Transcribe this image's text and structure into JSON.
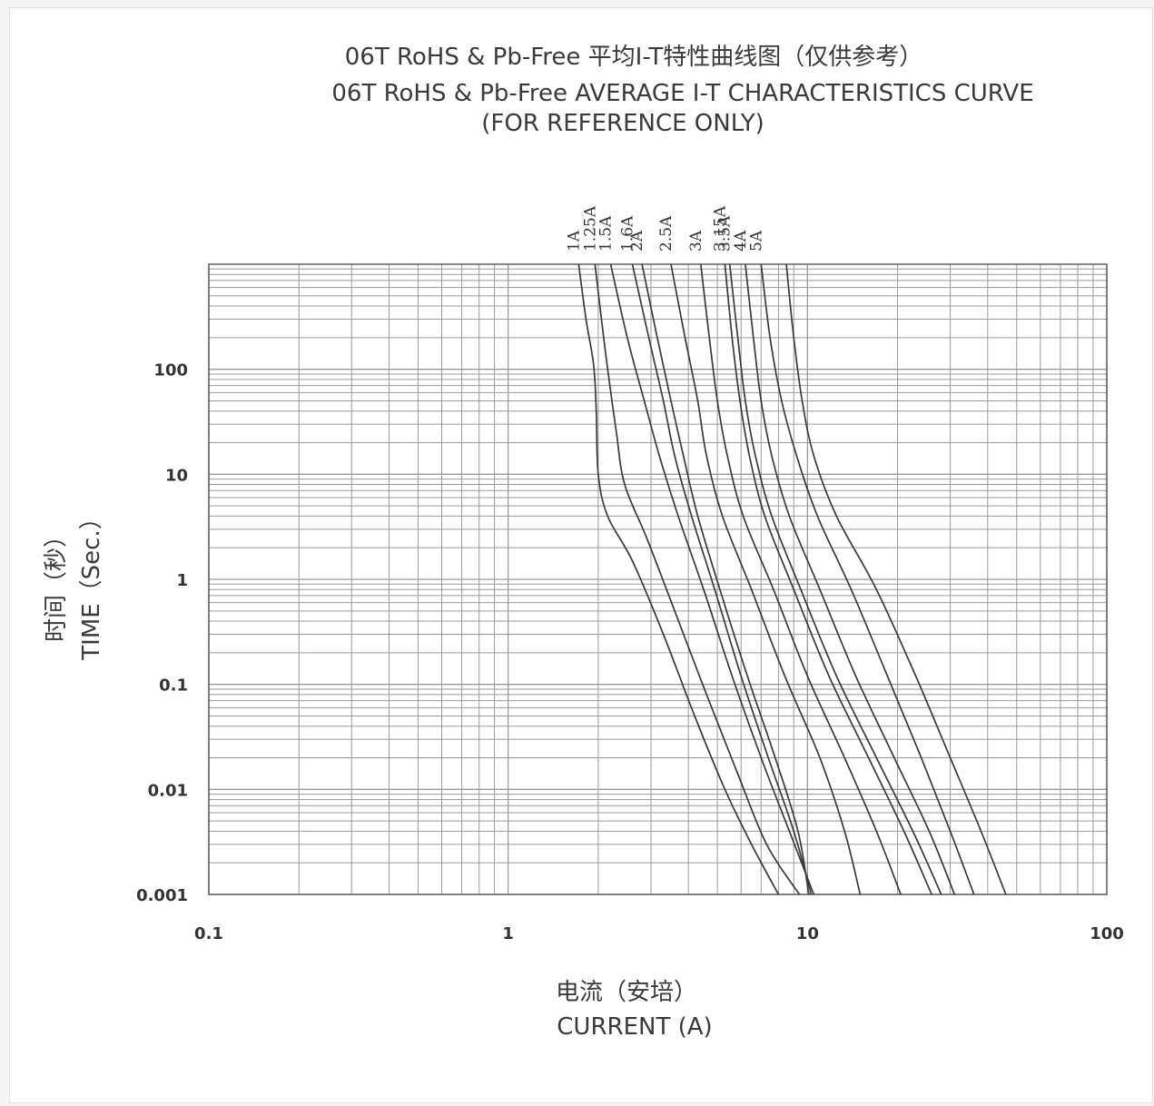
{
  "chart_data": {
    "type": "line",
    "title": "06T RoHS & Pb-Free 平均I-T特性曲线图（仅供参考）",
    "subtitle": "06T RoHS & Pb-Free  AVERAGE I-T CHARACTERISTICS CURVE",
    "subtitle2": "(FOR REFERENCE ONLY)",
    "xlabel_cn": "电流（安培）",
    "xlabel": "CURRENT (A)",
    "ylabel_cn": "时间（秒）",
    "ylabel": "TIME（Sec.）",
    "x_scale": "log",
    "y_scale": "log",
    "xlim": [
      0.1,
      100
    ],
    "ylim": [
      0.001,
      1000
    ],
    "x_ticks": [
      {
        "value": 0.1,
        "label": "0.1"
      },
      {
        "value": 1,
        "label": "1"
      },
      {
        "value": 10,
        "label": "10"
      },
      {
        "value": 100,
        "label": "100"
      }
    ],
    "y_ticks": [
      {
        "value": 0.001,
        "label": "0.001"
      },
      {
        "value": 0.01,
        "label": "0.01"
      },
      {
        "value": 0.1,
        "label": "0.1"
      },
      {
        "value": 1,
        "label": "1"
      },
      {
        "value": 10,
        "label": "10"
      },
      {
        "value": 100,
        "label": "100"
      }
    ],
    "grid": true,
    "legend": "rotated labels above top of each curve",
    "series": [
      {
        "name": "1A",
        "points": [
          [
            1.72,
            1000
          ],
          [
            1.82,
            300
          ],
          [
            1.93,
            110
          ],
          [
            1.97,
            40
          ],
          [
            2.0,
            10
          ],
          [
            2.15,
            4
          ],
          [
            2.6,
            1.5
          ],
          [
            3.3,
            0.3
          ],
          [
            4.2,
            0.05
          ],
          [
            5.3,
            0.01
          ],
          [
            6.5,
            0.003
          ],
          [
            8.0,
            0.001
          ]
        ]
      },
      {
        "name": "1.25A",
        "points": [
          [
            1.95,
            1000
          ],
          [
            2.05,
            300
          ],
          [
            2.15,
            100
          ],
          [
            2.3,
            25
          ],
          [
            2.45,
            8
          ],
          [
            2.9,
            2.5
          ],
          [
            3.6,
            0.5
          ],
          [
            4.6,
            0.08
          ],
          [
            5.8,
            0.015
          ],
          [
            7.3,
            0.003
          ],
          [
            9.4,
            0.001
          ]
        ]
      },
      {
        "name": "1.5A",
        "points": [
          [
            2.2,
            1000
          ],
          [
            2.5,
            200
          ],
          [
            2.85,
            50
          ],
          [
            3.2,
            15
          ],
          [
            3.7,
            4
          ],
          [
            4.5,
            0.8
          ],
          [
            5.6,
            0.12
          ],
          [
            7.0,
            0.02
          ],
          [
            8.7,
            0.004
          ],
          [
            10.5,
            0.001
          ]
        ]
      },
      {
        "name": "1.6A",
        "points": [
          [
            2.6,
            1000
          ],
          [
            2.95,
            200
          ],
          [
            3.3,
            50
          ],
          [
            3.6,
            15
          ],
          [
            4.1,
            4
          ],
          [
            4.9,
            0.8
          ],
          [
            6.0,
            0.12
          ],
          [
            7.4,
            0.02
          ],
          [
            9.0,
            0.004
          ],
          [
            10.3,
            0.001
          ]
        ]
      },
      {
        "name": "2A",
        "points": [
          [
            2.8,
            1000
          ],
          [
            3.15,
            200
          ],
          [
            3.5,
            50
          ],
          [
            3.85,
            15
          ],
          [
            4.3,
            4
          ],
          [
            5.1,
            0.8
          ],
          [
            6.3,
            0.12
          ],
          [
            7.8,
            0.02
          ],
          [
            9.3,
            0.004
          ],
          [
            10.1,
            0.001
          ]
        ]
      },
      {
        "name": "2.5A",
        "points": [
          [
            3.5,
            1000
          ],
          [
            3.9,
            200
          ],
          [
            4.3,
            50
          ],
          [
            4.6,
            15
          ],
          [
            5.2,
            4
          ],
          [
            6.5,
            0.8
          ],
          [
            8.4,
            0.12
          ],
          [
            11.0,
            0.02
          ],
          [
            13.3,
            0.004
          ],
          [
            15.0,
            0.001
          ]
        ]
      },
      {
        "name": "3A",
        "points": [
          [
            4.4,
            1000
          ],
          [
            4.7,
            200
          ],
          [
            5.0,
            50
          ],
          [
            5.4,
            15
          ],
          [
            6.1,
            4
          ],
          [
            7.7,
            0.8
          ],
          [
            10.0,
            0.12
          ],
          [
            13.3,
            0.02
          ],
          [
            17.0,
            0.004
          ],
          [
            20.5,
            0.001
          ]
        ]
      },
      {
        "name": "3.15A",
        "points": [
          [
            5.3,
            1000
          ],
          [
            5.6,
            200
          ],
          [
            5.95,
            50
          ],
          [
            6.4,
            15
          ],
          [
            7.2,
            4
          ],
          [
            9.0,
            0.8
          ],
          [
            11.8,
            0.12
          ],
          [
            16.0,
            0.02
          ],
          [
            21.0,
            0.004
          ],
          [
            26.0,
            0.001
          ]
        ]
      },
      {
        "name": "3.5A",
        "points": [
          [
            5.5,
            1000
          ],
          [
            5.85,
            200
          ],
          [
            6.2,
            50
          ],
          [
            6.7,
            15
          ],
          [
            7.6,
            4
          ],
          [
            9.5,
            0.8
          ],
          [
            12.5,
            0.12
          ],
          [
            17.0,
            0.02
          ],
          [
            22.5,
            0.004
          ],
          [
            28.0,
            0.001
          ]
        ]
      },
      {
        "name": "4A",
        "points": [
          [
            6.2,
            1000
          ],
          [
            6.6,
            200
          ],
          [
            7.0,
            50
          ],
          [
            7.6,
            15
          ],
          [
            8.7,
            4
          ],
          [
            11.0,
            0.8
          ],
          [
            14.5,
            0.12
          ],
          [
            19.5,
            0.02
          ],
          [
            25.5,
            0.004
          ],
          [
            31.0,
            0.001
          ]
        ]
      },
      {
        "name": "5A",
        "points": [
          [
            7.0,
            1000
          ],
          [
            7.5,
            200
          ],
          [
            8.2,
            50
          ],
          [
            9.2,
            15
          ],
          [
            10.8,
            4
          ],
          [
            14.0,
            0.8
          ],
          [
            18.5,
            0.12
          ],
          [
            24.0,
            0.02
          ],
          [
            30.0,
            0.004
          ],
          [
            36.0,
            0.001
          ]
        ]
      },
      {
        "name": "",
        "points": [
          [
            8.5,
            1000
          ],
          [
            9.0,
            200
          ],
          [
            9.6,
            50
          ],
          [
            10.5,
            15
          ],
          [
            12.5,
            4
          ],
          [
            17.0,
            0.8
          ],
          [
            23.0,
            0.12
          ],
          [
            30.0,
            0.02
          ],
          [
            38.0,
            0.004
          ],
          [
            46.0,
            0.001
          ]
        ]
      }
    ],
    "colors": {
      "curve": "#3a3a3a",
      "grid": "#9a9a9a",
      "axis": "#555555",
      "text": "#333333"
    }
  }
}
